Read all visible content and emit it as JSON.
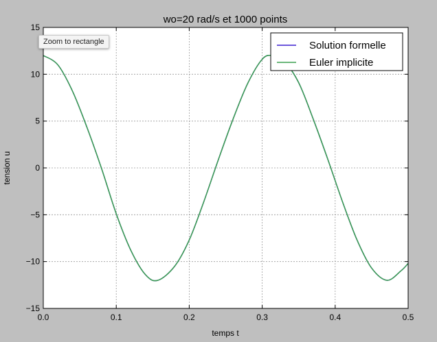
{
  "tooltip": {
    "text": "Zoom to rectangle"
  },
  "chart_data": {
    "type": "line",
    "title": "wo=20 rad/s et 1000 points",
    "xlabel": "temps t",
    "ylabel": "tension u",
    "xlim": [
      0,
      0.5
    ],
    "ylim": [
      -15,
      15
    ],
    "xticks": [
      0.0,
      0.1,
      0.2,
      0.3,
      0.4,
      0.5
    ],
    "xtick_labels": [
      "0.0",
      "0.1",
      "0.2",
      "0.3",
      "0.4",
      "0.5"
    ],
    "yticks": [
      15,
      10,
      5,
      0,
      -5,
      -10,
      -15
    ],
    "ytick_labels": [
      "15",
      "10",
      "5",
      "0",
      "−5",
      "−10",
      "−15"
    ],
    "grid": true,
    "legend_position": "top-right",
    "series": [
      {
        "name": "Solution formelle",
        "color": "#3b1fd0",
        "x": [
          0.0,
          0.02,
          0.04,
          0.06,
          0.08,
          0.1,
          0.12,
          0.14,
          0.157,
          0.18,
          0.2,
          0.22,
          0.24,
          0.26,
          0.28,
          0.3,
          0.314,
          0.33,
          0.35,
          0.37,
          0.39,
          0.41,
          0.43,
          0.45,
          0.471,
          0.49,
          0.5
        ],
        "y": [
          12.0,
          11.0,
          8.2,
          4.3,
          -0.1,
          -4.9,
          -8.8,
          -11.4,
          -12.0,
          -10.5,
          -7.7,
          -3.6,
          0.9,
          5.2,
          9.0,
          11.6,
          12.0,
          11.4,
          9.1,
          5.2,
          0.9,
          -3.6,
          -7.7,
          -10.7,
          -12.0,
          -11.0,
          -10.2
        ]
      },
      {
        "name": "Euler implicite",
        "color": "#3a9f4e",
        "x": [
          0.0,
          0.02,
          0.04,
          0.06,
          0.08,
          0.1,
          0.12,
          0.14,
          0.157,
          0.18,
          0.2,
          0.22,
          0.24,
          0.26,
          0.28,
          0.3,
          0.314,
          0.33,
          0.35,
          0.37,
          0.39,
          0.41,
          0.43,
          0.45,
          0.471,
          0.49,
          0.5
        ],
        "y": [
          12.0,
          11.0,
          8.2,
          4.3,
          -0.1,
          -4.9,
          -8.8,
          -11.4,
          -12.0,
          -10.5,
          -7.7,
          -3.6,
          0.9,
          5.2,
          9.0,
          11.6,
          12.0,
          11.4,
          9.1,
          5.2,
          0.9,
          -3.6,
          -7.7,
          -10.7,
          -12.0,
          -11.0,
          -10.2
        ]
      }
    ]
  }
}
